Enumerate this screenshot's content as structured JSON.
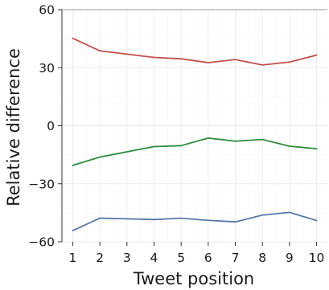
{
  "chart_data": {
    "type": "line",
    "title": "",
    "xlabel": "Tweet position",
    "ylabel": "Relative difference",
    "x": [
      1,
      2,
      3,
      4,
      5,
      6,
      7,
      8,
      9,
      10
    ],
    "x_ticks": [
      "1",
      "2",
      "3",
      "4",
      "5",
      "6",
      "7",
      "8",
      "9",
      "10"
    ],
    "y_ticks": [
      "60",
      "30",
      "0",
      "−30",
      "−60"
    ],
    "y_tick_values": [
      60,
      30,
      0,
      -30,
      -60
    ],
    "ylim": [
      -60,
      60
    ],
    "xlim": [
      0.6,
      10.4
    ],
    "grid": true,
    "legend": "none",
    "series": [
      {
        "color": "#c0504d",
        "values": [
          45.2,
          38.7,
          37.0,
          35.3,
          34.6,
          32.6,
          34.2,
          31.4,
          32.9,
          36.5
        ]
      },
      {
        "color": "#2e8b3e",
        "values": [
          -20.5,
          -16.2,
          -13.5,
          -10.8,
          -10.3,
          -6.4,
          -8.0,
          -7.1,
          -10.6,
          -11.9
        ]
      },
      {
        "color": "#5878a8",
        "values": [
          -54.2,
          -47.8,
          -48.1,
          -48.5,
          -47.8,
          -48.9,
          -49.7,
          -46.2,
          -44.8,
          -49.0
        ]
      }
    ]
  }
}
